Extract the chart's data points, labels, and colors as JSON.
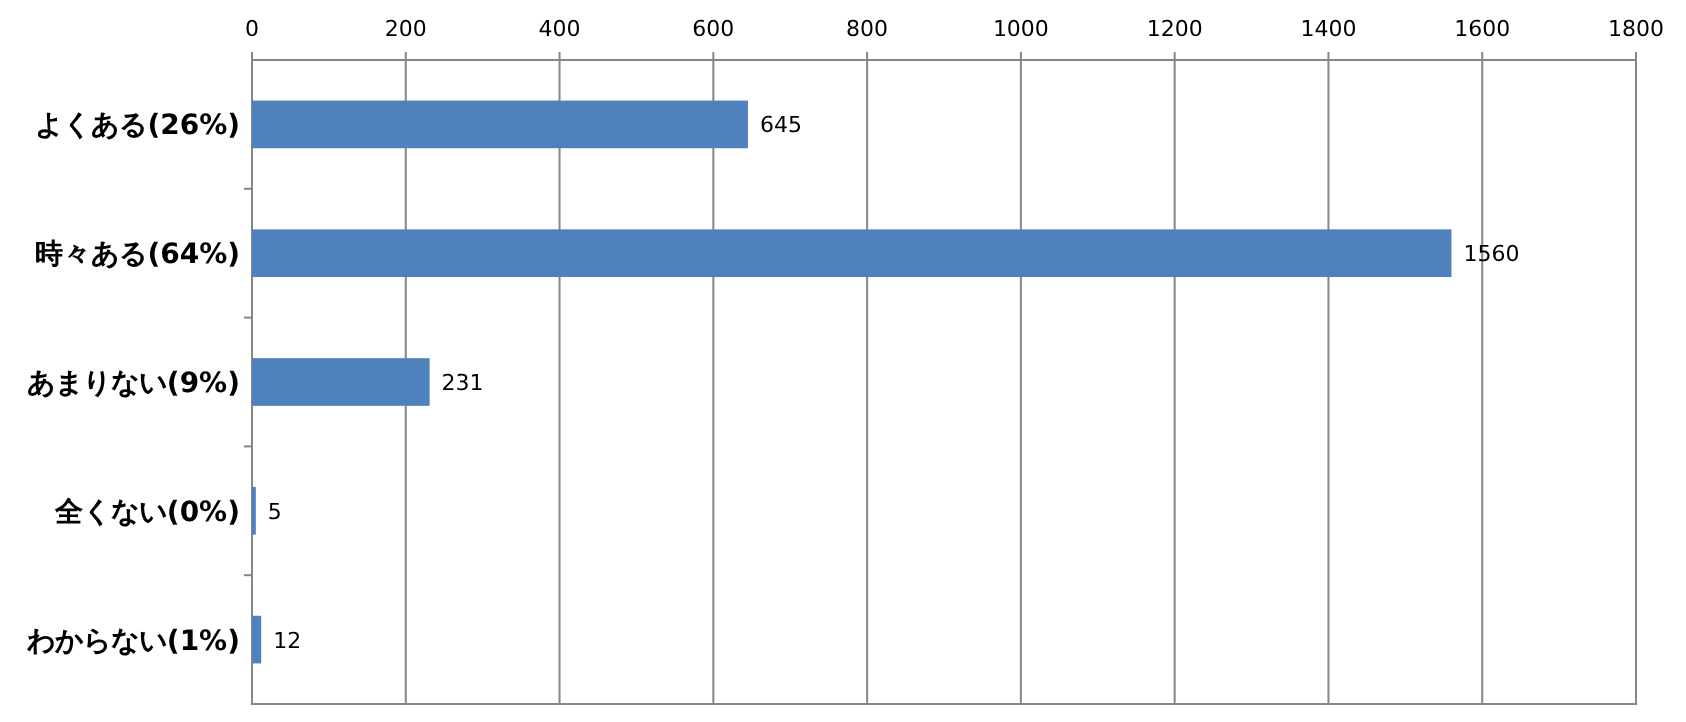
{
  "chart_data": {
    "type": "bar",
    "orientation": "horizontal",
    "categories": [
      "よくある(26%)",
      "時々ある(64%)",
      "あまりない(9%)",
      "全くない(0%)",
      "わからない(1%)"
    ],
    "values": [
      645,
      1560,
      231,
      5,
      12
    ],
    "color": "#4f81bd",
    "xlim": [
      0,
      1800
    ],
    "xticks": [
      0,
      200,
      400,
      600,
      800,
      1000,
      1200,
      1400,
      1600,
      1800
    ],
    "grid": "x",
    "data_labels": true
  }
}
